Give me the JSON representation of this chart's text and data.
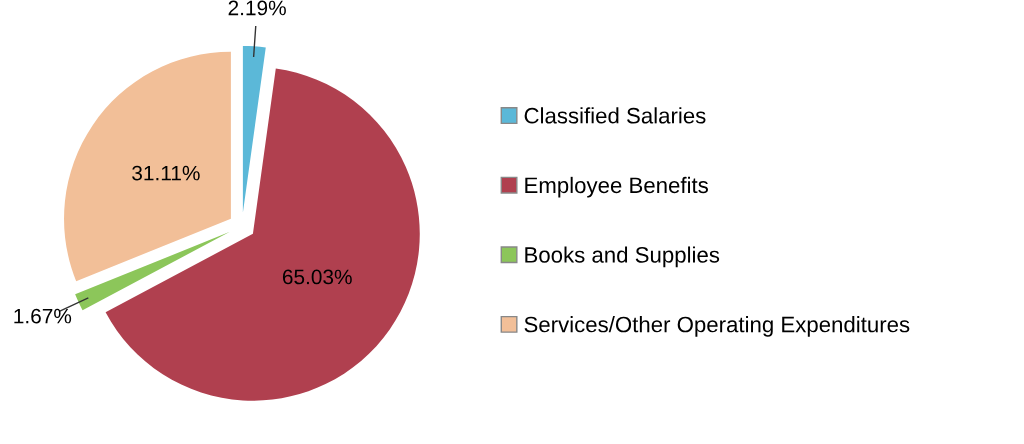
{
  "chart_data": {
    "type": "pie",
    "categories": [
      "Classified Salaries",
      "Employee Benefits",
      "Books and Supplies",
      "Services/Other Operating Expenditures"
    ],
    "values": [
      2.19,
      65.03,
      1.67,
      31.11
    ],
    "colors": [
      "#5bb8d8",
      "#b0404f",
      "#8cc65a",
      "#f2bf98"
    ],
    "value_labels": [
      "2.19%",
      "65.03%",
      "1.67%",
      "31.11%"
    ],
    "legend": "right"
  }
}
